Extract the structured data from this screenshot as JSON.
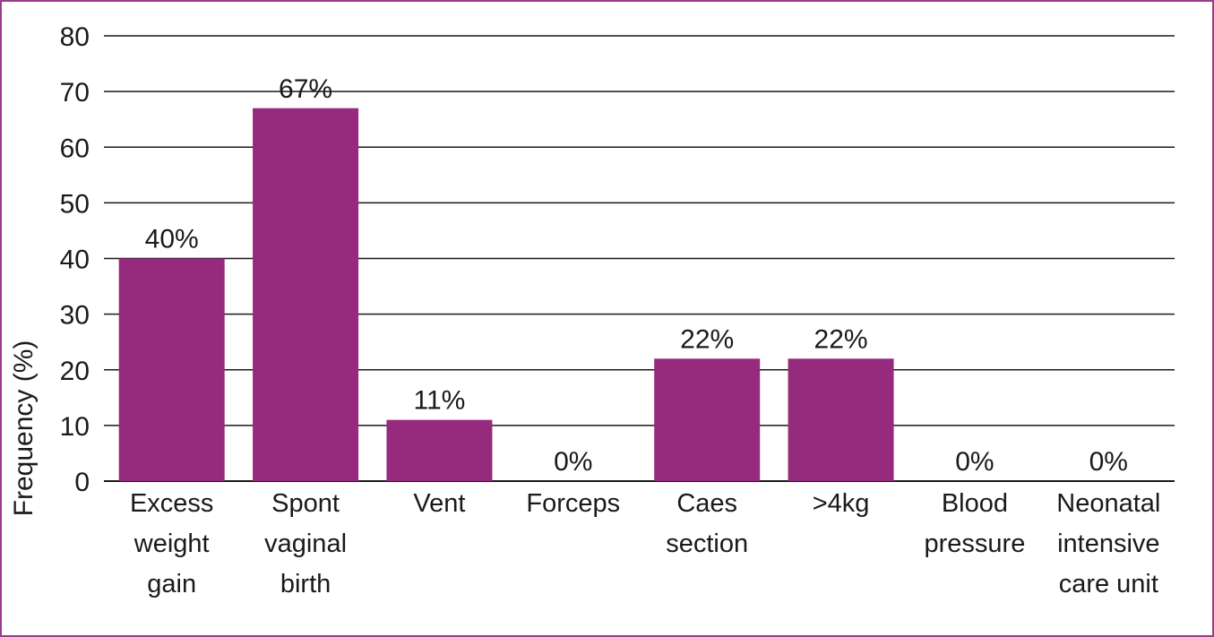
{
  "chart_data": {
    "type": "bar",
    "categories": [
      [
        "Excess",
        "weight",
        "gain"
      ],
      [
        "Spont",
        "vaginal",
        "birth"
      ],
      [
        "Vent"
      ],
      [
        "Forceps"
      ],
      [
        "Caes",
        "section"
      ],
      [
        ">4kg"
      ],
      [
        "Blood",
        "pressure"
      ],
      [
        "Neonatal",
        "intensive",
        "care unit"
      ]
    ],
    "values": [
      40,
      67,
      11,
      0,
      22,
      22,
      0,
      0
    ],
    "data_labels": [
      "40%",
      "67%",
      "11%",
      "0%",
      "22%",
      "22%",
      "0%",
      "0%"
    ],
    "ylabel": "Frequency (%)",
    "yticks": [
      0,
      10,
      20,
      30,
      40,
      50,
      60,
      70,
      80
    ],
    "ylim": [
      0,
      80
    ],
    "grid": true,
    "legend": "none",
    "bar_color": "#962a7c"
  }
}
